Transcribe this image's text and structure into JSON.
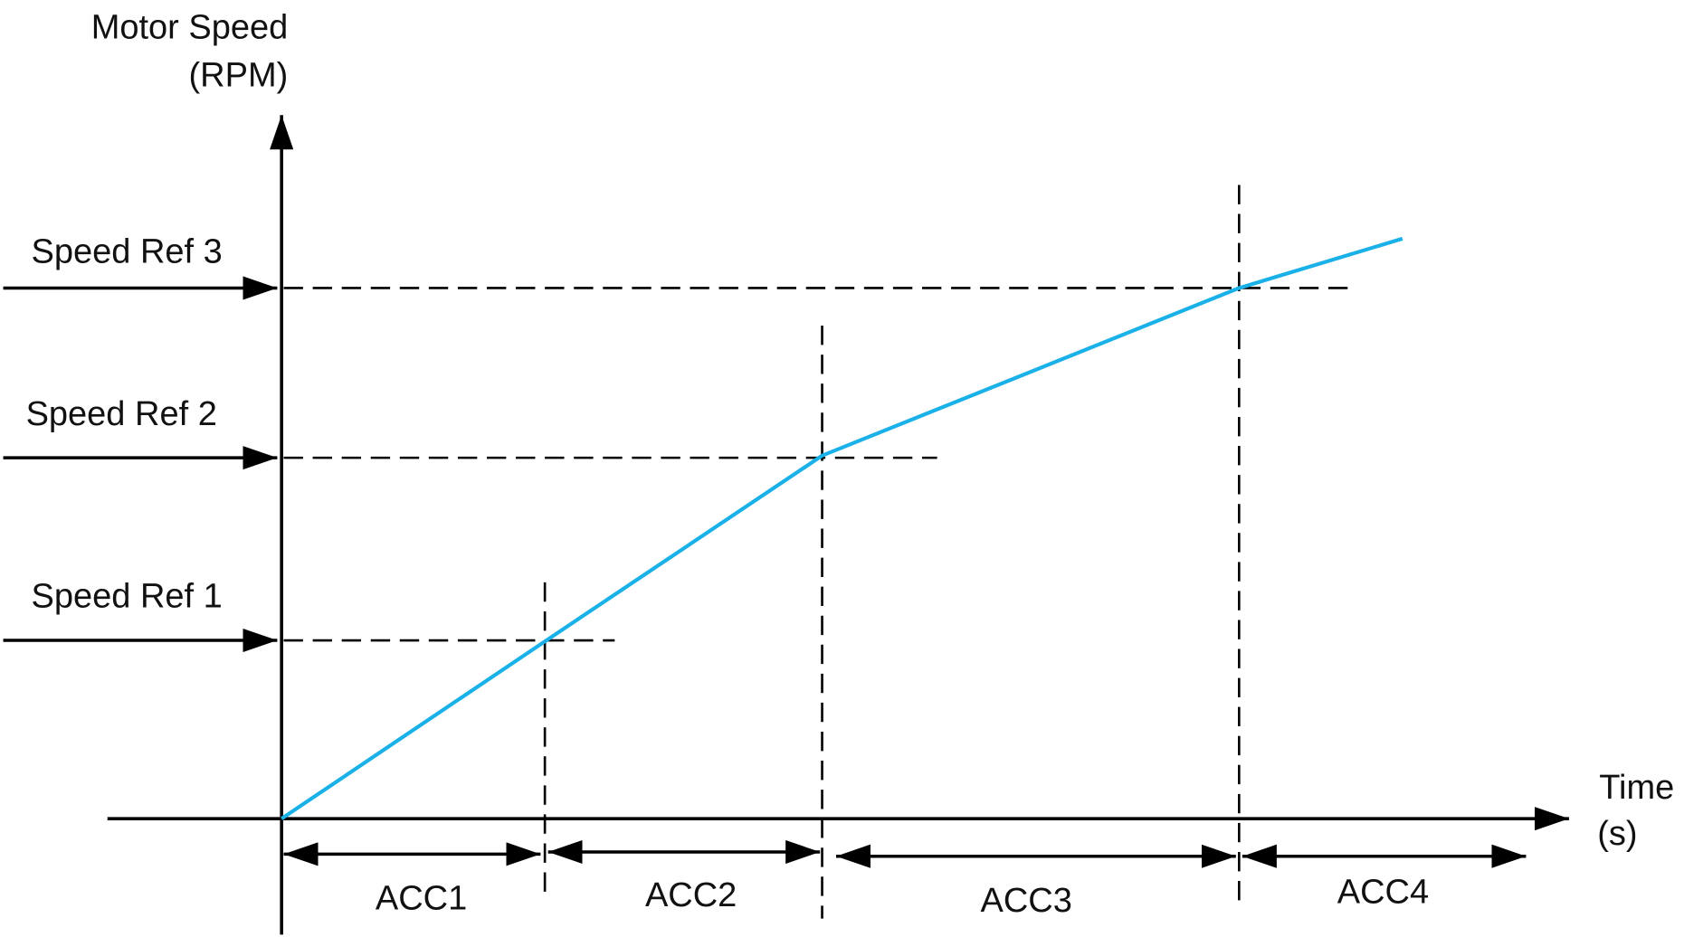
{
  "y_axis": {
    "label": "Motor Speed",
    "unit": "(RPM)"
  },
  "x_axis": {
    "label": "Time",
    "unit": "(s)"
  },
  "speed_refs": [
    "Speed Ref 1",
    "Speed Ref 2",
    "Speed Ref 3"
  ],
  "accelerations": [
    "ACC1",
    "ACC2",
    "ACC3",
    "ACC4"
  ]
}
